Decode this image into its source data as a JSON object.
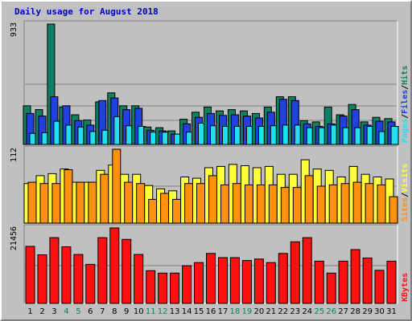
{
  "colors": {
    "background": "#c0c0c0",
    "plot_bg": "#c0c0c0",
    "title": "#0000c0",
    "hits": "#108060",
    "files": "#2040e0",
    "pages": "#20e0f0",
    "visits": "#ffff40",
    "sites": "#ff9010",
    "kbytes": "#ff1010",
    "weekend": "#108060",
    "weekday": "#000000"
  },
  "chart_data": {
    "title": "Daily usage for August 2018",
    "type": "bar",
    "categories": [
      "1",
      "2",
      "3",
      "4",
      "5",
      "6",
      "7",
      "8",
      "9",
      "10",
      "11",
      "12",
      "13",
      "14",
      "15",
      "16",
      "17",
      "18",
      "19",
      "20",
      "21",
      "22",
      "23",
      "24",
      "25",
      "26",
      "27",
      "28",
      "29",
      "30",
      "31"
    ],
    "weekend_days": [
      "4",
      "5",
      "11",
      "12",
      "18",
      "19",
      "25",
      "26"
    ],
    "panels": [
      {
        "id": "top",
        "ymax_label": "933",
        "ymax": 933,
        "legend": [
          {
            "text": "Pages",
            "color_key": "pages"
          },
          {
            "text": "/",
            "color_key": "weekday"
          },
          {
            "text": "Files",
            "color_key": "files"
          },
          {
            "text": "/",
            "color_key": "weekday"
          },
          {
            "text": "Hits",
            "color_key": "hits"
          }
        ],
        "series": [
          {
            "name": "Hits",
            "color_key": "hits",
            "values": [
              300,
              270,
              933,
              290,
              230,
              190,
              330,
              400,
              300,
              300,
              135,
              130,
              105,
              195,
              250,
              290,
              260,
              270,
              260,
              240,
              290,
              370,
              370,
              185,
              175,
              290,
              230,
              310,
              175,
              210,
              200
            ]
          },
          {
            "name": "Files",
            "color_key": "files",
            "values": [
              240,
              220,
              370,
              300,
              185,
              150,
              340,
              360,
              270,
              280,
              110,
              105,
              80,
              160,
              210,
              240,
              225,
              230,
              220,
              205,
              250,
              350,
              340,
              160,
              140,
              160,
              220,
              270,
              150,
              180,
              175
            ]
          },
          {
            "name": "Pages",
            "color_key": "pages",
            "values": [
              85,
              90,
              180,
              150,
              135,
              100,
              110,
              215,
              145,
              140,
              95,
              95,
              80,
              95,
              165,
              145,
              140,
              140,
              140,
              140,
              145,
              150,
              150,
              130,
              130,
              150,
              130,
              130,
              140,
              100,
              140
            ]
          }
        ]
      },
      {
        "id": "middle",
        "ymax_label": "112",
        "ymax": 112,
        "legend": [
          {
            "text": "Sites",
            "color_key": "sites"
          },
          {
            "text": "/",
            "color_key": "weekday"
          },
          {
            "text": "Visits",
            "color_key": "visits"
          }
        ],
        "series": [
          {
            "name": "Visits",
            "color_key": "visits",
            "values": [
              60,
              72,
              75,
              82,
              62,
              62,
              80,
              88,
              74,
              74,
              57,
              52,
              49,
              70,
              68,
              84,
              86,
              89,
              87,
              84,
              86,
              74,
              74,
              96,
              82,
              80,
              70,
              86,
              74,
              70,
              67
            ]
          },
          {
            "name": "Sites",
            "color_key": "sites",
            "values": [
              62,
              60,
              60,
              81,
              62,
              62,
              74,
              112,
              62,
              60,
              36,
              45,
              36,
              60,
              60,
              72,
              58,
              60,
              58,
              58,
              58,
              54,
              54,
              72,
              56,
              58,
              60,
              62,
              60,
              58,
              40
            ]
          }
        ]
      },
      {
        "id": "bottom",
        "ymax_label": "21456",
        "ymax": 21456,
        "legend": [
          {
            "text": "KBytes",
            "color_key": "kbytes"
          }
        ],
        "series": [
          {
            "name": "KBytes",
            "color_key": "kbytes",
            "values": [
              16200,
              13800,
              18700,
              16100,
              13900,
              11100,
              18700,
              21456,
              18200,
              13900,
              9300,
              8600,
              8600,
              10700,
              11600,
              14200,
              13000,
              13000,
              12200,
              12600,
              11600,
              14200,
              17500,
              18700,
              12000,
              8600,
              12000,
              15300,
              12900,
              9400,
              12000
            ]
          }
        ]
      }
    ]
  }
}
